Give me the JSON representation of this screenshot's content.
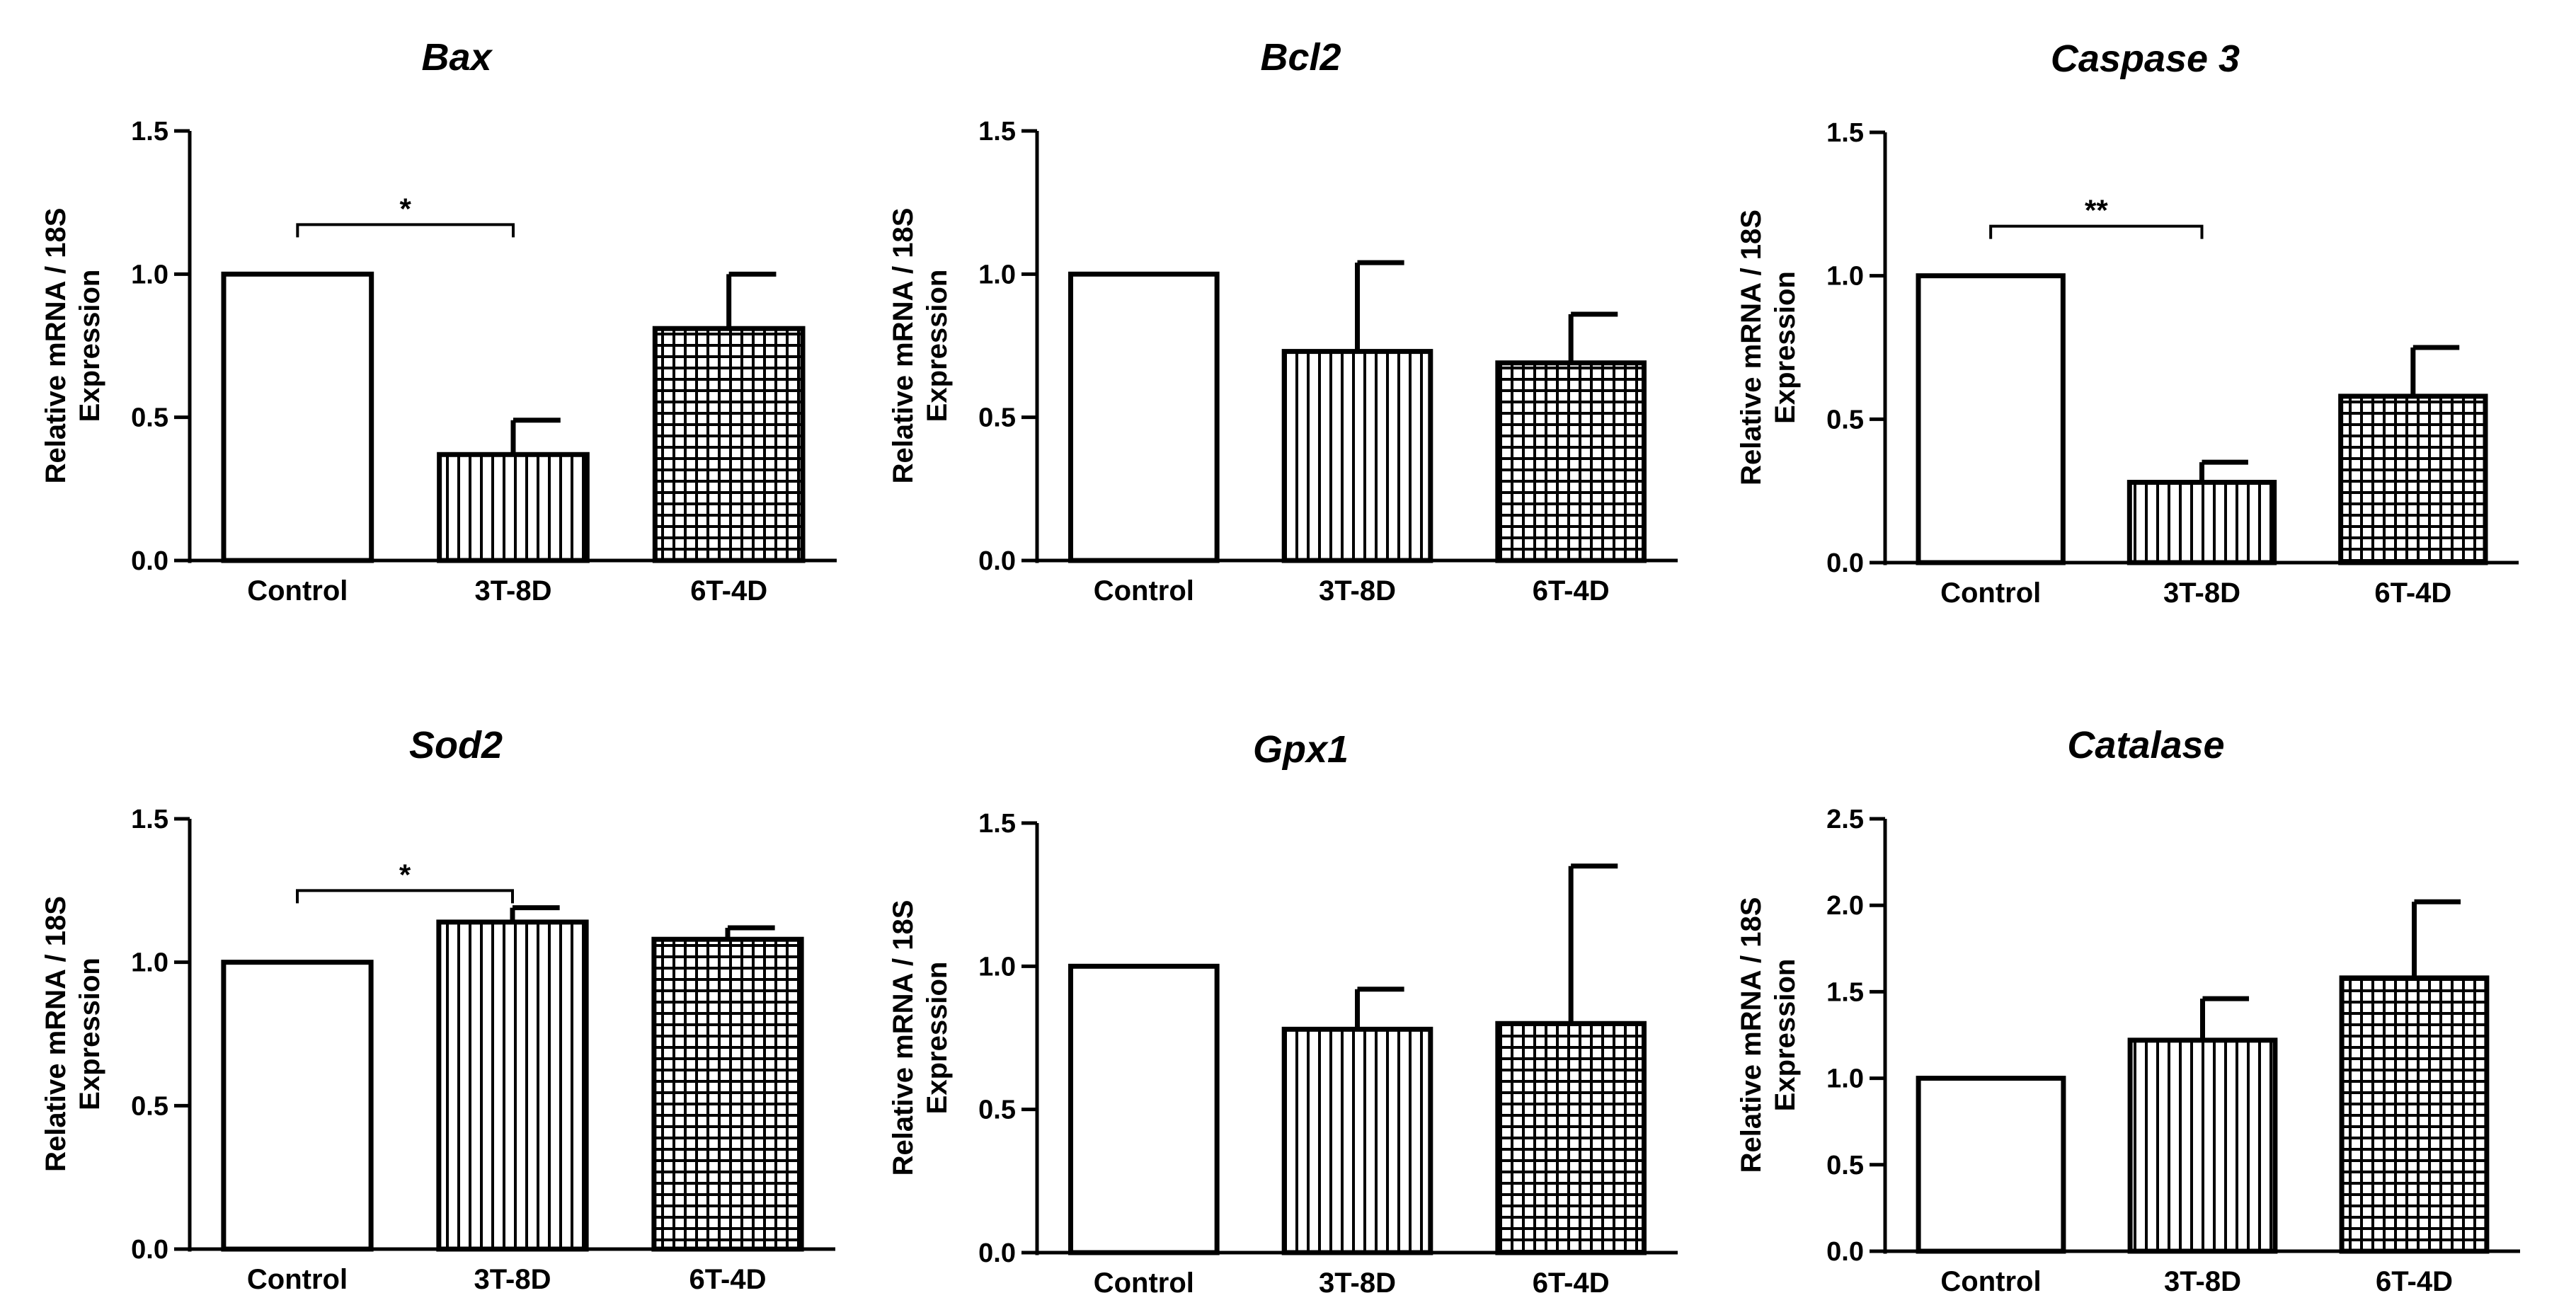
{
  "chart_data": [
    {
      "type": "bar",
      "title": "Bax",
      "ylabel": [
        "Relative mRNA / 18S",
        "Expression"
      ],
      "categories": [
        "Control",
        "3T-8D",
        "6T-4D"
      ],
      "values": [
        1.0,
        0.37,
        0.81
      ],
      "errors": [
        0,
        0.12,
        0.19
      ],
      "ylim": [
        0,
        1.5
      ],
      "yticks": [
        "0.0",
        "0.5",
        "1.0",
        "1.5"
      ],
      "significance": [
        {
          "from": "Control",
          "to": "3T-8D",
          "label": "*"
        }
      ]
    },
    {
      "type": "bar",
      "title": "Bcl2",
      "ylabel": [
        "Relative mRNA / 18S",
        "Expression"
      ],
      "categories": [
        "Control",
        "3T-8D",
        "6T-4D"
      ],
      "values": [
        1.0,
        0.73,
        0.69
      ],
      "errors": [
        0,
        0.31,
        0.17
      ],
      "ylim": [
        0,
        1.5
      ],
      "yticks": [
        "0.0",
        "0.5",
        "1.0",
        "1.5"
      ],
      "significance": []
    },
    {
      "type": "bar",
      "title": "Caspase 3",
      "ylabel": [
        "Relative mRNA / 18S",
        "Expression"
      ],
      "categories": [
        "Control",
        "3T-8D",
        "6T-4D"
      ],
      "values": [
        1.0,
        0.28,
        0.58
      ],
      "errors": [
        0,
        0.07,
        0.17
      ],
      "ylim": [
        0,
        1.5
      ],
      "yticks": [
        "0.0",
        "0.5",
        "1.0",
        "1.5"
      ],
      "significance": [
        {
          "from": "Control",
          "to": "3T-8D",
          "label": "**"
        }
      ]
    },
    {
      "type": "bar",
      "title": "Sod2",
      "ylabel": [
        "Relative mRNA / 18S",
        "Expression"
      ],
      "categories": [
        "Control",
        "3T-8D",
        "6T-4D"
      ],
      "values": [
        1.0,
        1.14,
        1.08
      ],
      "errors": [
        0,
        0.05,
        0.04
      ],
      "ylim": [
        0,
        1.5
      ],
      "yticks": [
        "0.0",
        "0.5",
        "1.0",
        "1.5"
      ],
      "significance": [
        {
          "from": "Control",
          "to": "3T-8D",
          "label": "*"
        }
      ]
    },
    {
      "type": "bar",
      "title": "Gpx1",
      "ylabel": [
        "Relative mRNA / 18S",
        "Expression"
      ],
      "categories": [
        "Control",
        "3T-8D",
        "6T-4D"
      ],
      "values": [
        1.0,
        0.78,
        0.8
      ],
      "errors": [
        0,
        0.14,
        0.55
      ],
      "ylim": [
        0,
        1.5
      ],
      "yticks": [
        "0.0",
        "0.5",
        "1.0",
        "1.5"
      ],
      "significance": []
    },
    {
      "type": "bar",
      "title": "Catalase",
      "ylabel": [
        "Relative mRNA / 18S",
        "Expression"
      ],
      "categories": [
        "Control",
        "3T-8D",
        "6T-4D"
      ],
      "values": [
        1.0,
        1.22,
        1.58
      ],
      "errors": [
        0,
        0.24,
        0.44
      ],
      "ylim": [
        0,
        2.5
      ],
      "yticks": [
        "0.0",
        "0.5",
        "1.0",
        "1.5",
        "2.0",
        "2.5"
      ],
      "significance": []
    }
  ],
  "style": {
    "bar_fill": "#ffffff",
    "ink": "#000000",
    "patterns": [
      "none",
      "vertical-lines",
      "grid"
    ]
  }
}
